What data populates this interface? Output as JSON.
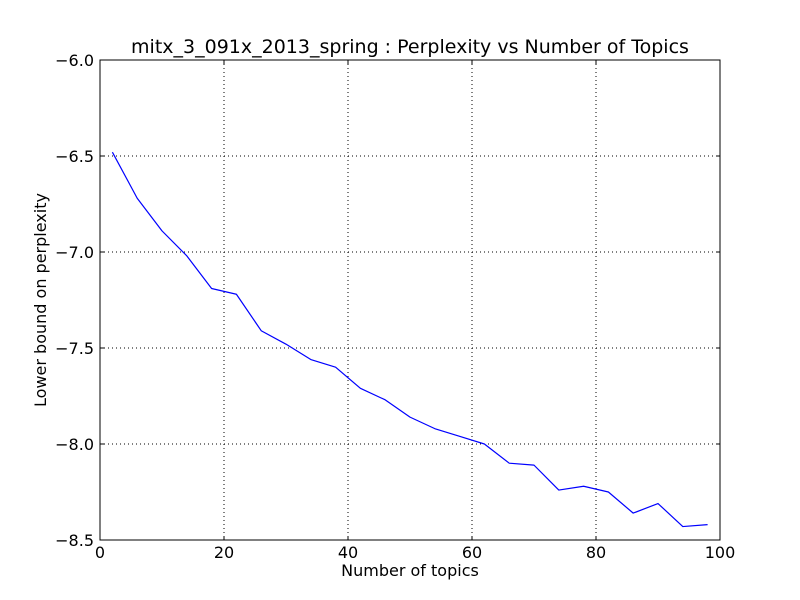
{
  "chart_data": {
    "type": "line",
    "title": "mitx_3_091x_2013_spring : Perplexity vs Number of Topics",
    "xlabel": "Number of topics",
    "ylabel": "Lower bound on perplexity",
    "xlim": [
      0,
      100
    ],
    "ylim": [
      -8.5,
      -6.0
    ],
    "xticks": [
      "0",
      "20",
      "40",
      "60",
      "80",
      "100"
    ],
    "yticks": [
      "−6.0",
      "−6.5",
      "−7.0",
      "−7.5",
      "−8.0",
      "−8.5"
    ],
    "grid": true,
    "series": [
      {
        "color": "#0000ff",
        "x": [
          2,
          6,
          10,
          14,
          18,
          22,
          26,
          30,
          34,
          38,
          42,
          46,
          50,
          54,
          58,
          62,
          66,
          70,
          74,
          78,
          82,
          86,
          90,
          94,
          98
        ],
        "y": [
          -6.48,
          -6.72,
          -6.89,
          -7.02,
          -7.19,
          -7.22,
          -7.41,
          -7.48,
          -7.56,
          -7.6,
          -7.71,
          -7.77,
          -7.86,
          -7.92,
          -7.96,
          -8.0,
          -8.1,
          -8.11,
          -8.24,
          -8.22,
          -8.25,
          -8.36,
          -8.31,
          -8.43,
          -8.42
        ]
      }
    ]
  }
}
